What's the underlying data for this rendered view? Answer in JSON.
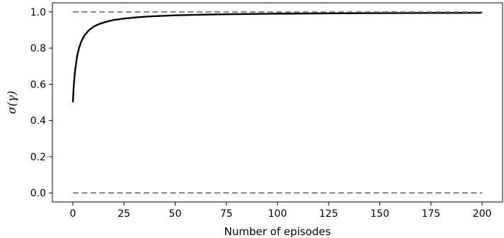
{
  "chart_data": {
    "type": "line",
    "title": "",
    "xlabel": "Number of episodes",
    "ylabel": "σ(γ)",
    "xlim": [
      -10,
      210
    ],
    "ylim": [
      -0.05,
      1.05
    ],
    "xticks": [
      0,
      25,
      50,
      75,
      100,
      125,
      150,
      175,
      200
    ],
    "yticks": [
      0.0,
      0.2,
      0.4,
      0.6,
      0.8,
      1.0
    ],
    "ytick_labels": [
      "0.0",
      "0.2",
      "0.4",
      "0.6",
      "0.8",
      "1.0"
    ],
    "grid": false,
    "legend": "none",
    "series": [
      {
        "style": "solid",
        "color": "#000000",
        "x": [
          0,
          0.5,
          1,
          2,
          3,
          4,
          5,
          6,
          8,
          10,
          12,
          15,
          18,
          20,
          25,
          30,
          35,
          40,
          50,
          60,
          75,
          90,
          100,
          125,
          150,
          175,
          200
        ],
        "y": [
          0.5,
          0.6,
          0.667,
          0.75,
          0.8,
          0.833,
          0.857,
          0.875,
          0.9,
          0.917,
          0.929,
          0.941,
          0.95,
          0.955,
          0.963,
          0.969,
          0.973,
          0.976,
          0.981,
          0.984,
          0.987,
          0.989,
          0.99,
          0.992,
          0.993,
          0.994,
          0.995
        ]
      },
      {
        "style": "dashed",
        "color": "#808080",
        "x": [
          0,
          200
        ],
        "y": [
          1.0,
          1.0
        ]
      },
      {
        "style": "dashed",
        "color": "#808080",
        "x": [
          0,
          200
        ],
        "y": [
          0.0,
          0.0
        ]
      }
    ]
  }
}
